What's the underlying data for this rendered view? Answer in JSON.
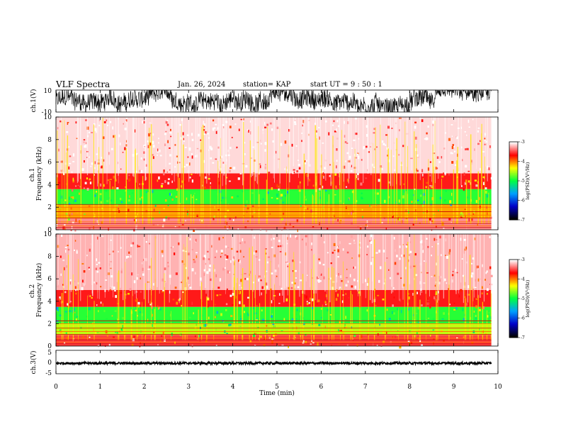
{
  "header": {
    "title": "VLF Spectra",
    "date": "Jan. 26, 2024",
    "station": "station= KAP",
    "start_ut": "start  UT =   9 : 50 : 1"
  },
  "chart_data": [
    {
      "type": "line",
      "panel": "ch.1 waveform",
      "ylabel": "ch.1(V)",
      "ylim": [
        -10,
        10
      ],
      "ytick_labels": [
        "10",
        "-10"
      ],
      "x_range_min": [
        0,
        9.85
      ],
      "amplitude_range_v": [
        -10,
        10
      ]
    },
    {
      "type": "heatmap",
      "panel": "ch.1 spectrogram",
      "ylabel": "ch.1\nFrequency (kHz)",
      "ylim": [
        0,
        10
      ],
      "ytick_labels": [
        "0",
        "2",
        "4",
        "6",
        "8",
        "10"
      ],
      "x_range_min": [
        0,
        9.85
      ],
      "colorbar": {
        "label": "log(PSD)(V²/Hz)",
        "range": [
          -7,
          -3
        ],
        "tick_labels": [
          "-3",
          "-4",
          "-5",
          "-6",
          "-7"
        ]
      },
      "bands": [
        {
          "freq_khz": [
            0.0,
            1.0
          ],
          "log_psd": -3.3
        },
        {
          "freq_khz": [
            1.0,
            2.2
          ],
          "log_psd": -4.1
        },
        {
          "freq_khz": [
            2.2,
            3.6
          ],
          "log_psd": -4.9
        },
        {
          "freq_khz": [
            3.6,
            5.0
          ],
          "log_psd": -3.6
        },
        {
          "freq_khz": [
            5.0,
            10.0
          ],
          "log_psd": -3.1
        }
      ]
    },
    {
      "type": "heatmap",
      "panel": "ch.2 spectrogram",
      "ylabel": "ch.2\nFrequency (kHz)",
      "ylim": [
        0,
        10
      ],
      "ytick_labels": [
        "0",
        "2",
        "4",
        "6",
        "8",
        "10"
      ],
      "x_range_min": [
        0,
        9.85
      ],
      "colorbar": {
        "label": "log(PSD)(V²/Hz)",
        "range": [
          -7,
          -3
        ],
        "tick_labels": [
          "-3",
          "-4",
          "-5",
          "-6",
          "-7"
        ]
      },
      "bands": [
        {
          "freq_khz": [
            0.0,
            1.0
          ],
          "log_psd": -3.5
        },
        {
          "freq_khz": [
            1.0,
            2.0
          ],
          "log_psd": -4.5
        },
        {
          "freq_khz": [
            2.0,
            3.5
          ],
          "log_psd": -4.9
        },
        {
          "freq_khz": [
            3.5,
            5.0
          ],
          "log_psd": -3.6
        },
        {
          "freq_khz": [
            5.0,
            10.0
          ],
          "log_psd": -3.2
        }
      ]
    },
    {
      "type": "line",
      "panel": "ch.3 waveform",
      "ylabel": "ch.3(V)",
      "ylim": [
        -5,
        5
      ],
      "ytick_labels": [
        "5",
        "0",
        "-5"
      ],
      "x_range_min": [
        0,
        9.85
      ],
      "amplitude_range_v": [
        -1.0,
        0.0
      ]
    }
  ],
  "xaxis": {
    "label": "Time (min)",
    "range": [
      0,
      10
    ],
    "tick_labels": [
      "0",
      "1",
      "2",
      "3",
      "4",
      "5",
      "6",
      "7",
      "8",
      "9",
      "10"
    ]
  },
  "colors": {
    "spectrogram_bg": "#ff2a2a",
    "colormap": [
      "#000000",
      "#0000c8",
      "#00a0ff",
      "#00ff40",
      "#ffff00",
      "#ff0000",
      "#ffffff"
    ]
  }
}
